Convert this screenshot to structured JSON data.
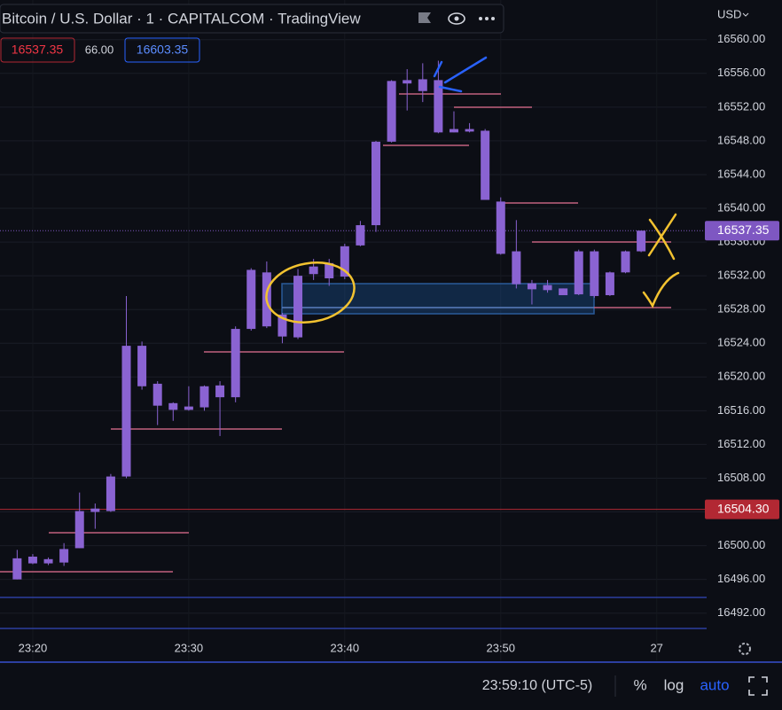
{
  "header": {
    "title": "Bitcoin / U.S. Dollar · 1 · CAPITALCOM · TradingView",
    "bid": "16537.35",
    "spread": "66.00",
    "ask": "16603.35",
    "currency": "USD"
  },
  "footer": {
    "clock": "23:59:10 (UTC-5)",
    "percent": "%",
    "log": "log",
    "auto": "auto"
  },
  "chart_data": {
    "type": "candlestick",
    "color": "#8a63d2",
    "grid": true,
    "x": [
      19,
      20,
      21,
      22,
      23,
      24,
      25,
      26,
      27,
      28,
      29,
      30,
      31,
      32,
      33,
      34,
      35,
      36,
      37,
      38,
      39,
      40,
      41,
      42,
      43,
      44,
      45,
      46,
      47,
      48,
      49,
      50,
      51,
      52,
      53,
      54,
      55,
      56,
      57,
      58,
      59
    ],
    "open": [
      16496.0,
      16497.9,
      16498.4,
      16498.0,
      16499.7,
      16504.0,
      16504.1,
      16508.2,
      16523.7,
      16519.2,
      16516.9,
      16516.1,
      16516.4,
      16519.0,
      16517.6,
      16525.7,
      16532.4,
      16527.4,
      16524.7,
      16532.2,
      16533.5,
      16531.9,
      16535.6,
      16538.0,
      16547.9,
      16555.2,
      16555.3,
      16555.2,
      16549.0,
      16549.4,
      16549.2,
      16540.8,
      16534.9,
      16531.1,
      16530.9,
      16530.5,
      16529.8,
      16534.9,
      16529.7,
      16532.4,
      16534.9
    ],
    "high": [
      16499.5,
      16499.0,
      16498.6,
      16500.3,
      16506.3,
      16505.0,
      16508.5,
      16529.6,
      16524.2,
      16519.5,
      16517.0,
      16518.9,
      16519.0,
      16519.5,
      16526.0,
      16532.9,
      16533.7,
      16527.6,
      16532.8,
      16534.0,
      16534.0,
      16535.8,
      16538.5,
      16548.0,
      16555.2,
      16556.5,
      16557.2,
      16557.5,
      16551.5,
      16550.1,
      16549.4,
      16541.3,
      16538.6,
      16531.5,
      16531.5,
      16530.5,
      16535.1,
      16535.1,
      16532.5,
      16535.0,
      16537.35
    ],
    "low": [
      16496.0,
      16497.8,
      16497.7,
      16497.6,
      16499.7,
      16502.0,
      16504.0,
      16508.0,
      16518.5,
      16514.3,
      16514.8,
      16516.0,
      16516.0,
      16513.0,
      16517.0,
      16525.5,
      16525.8,
      16524.0,
      16524.5,
      16531.5,
      16530.8,
      16531.6,
      16535.5,
      16537.2,
      16547.8,
      16551.6,
      16552.6,
      16548.9,
      16549.0,
      16549.0,
      16541.0,
      16534.5,
      16530.5,
      16528.6,
      16530.0,
      16529.7,
      16529.7,
      16529.4,
      16529.6,
      16532.3,
      16534.8
    ],
    "close": [
      16498.5,
      16498.7,
      16497.9,
      16499.6,
      16504.1,
      16504.4,
      16508.2,
      16523.7,
      16518.9,
      16516.6,
      16516.1,
      16516.5,
      16518.9,
      16517.6,
      16525.7,
      16532.7,
      16526.0,
      16524.8,
      16532.0,
      16533.1,
      16531.7,
      16535.5,
      16538.0,
      16547.9,
      16555.1,
      16554.8,
      16553.9,
      16549.0,
      16549.4,
      16549.1,
      16541.0,
      16534.6,
      16531.0,
      16530.4,
      16530.3,
      16529.7,
      16534.9,
      16529.6,
      16532.4,
      16534.9,
      16537.35
    ],
    "xlim": [
      17.9,
      63.2
    ],
    "xticks": [
      {
        "value": 20,
        "label": "23:20"
      },
      {
        "value": 30,
        "label": "23:30"
      },
      {
        "value": 40,
        "label": "23:40"
      },
      {
        "value": 50,
        "label": "23:50"
      },
      {
        "value": 60,
        "label": "27"
      }
    ],
    "ylim": [
      16486.4,
      16564.7
    ],
    "yticks": [
      {
        "value": 16492,
        "label": "16492.00"
      },
      {
        "value": 16496,
        "label": "16496.00"
      },
      {
        "value": 16500,
        "label": "16500.00"
      },
      {
        "value": 16504,
        "label": "16504.00"
      },
      {
        "value": 16508,
        "label": "16508.00"
      },
      {
        "value": 16512,
        "label": "16512.00"
      },
      {
        "value": 16516,
        "label": "16516.00"
      },
      {
        "value": 16520,
        "label": "16520.00"
      },
      {
        "value": 16524,
        "label": "16524.00"
      },
      {
        "value": 16528,
        "label": "16528.00"
      },
      {
        "value": 16532,
        "label": "16532.00"
      },
      {
        "value": 16536,
        "label": "16536.00"
      },
      {
        "value": 16540,
        "label": "16540.00"
      },
      {
        "value": 16544,
        "label": "16544.00"
      },
      {
        "value": 16548,
        "label": "16548.00"
      },
      {
        "value": 16552,
        "label": "16552.00"
      },
      {
        "value": 16556,
        "label": "16556.00"
      },
      {
        "value": 16560,
        "label": "16560.00"
      }
    ],
    "price_lines": [
      {
        "value": 16537.35,
        "color": "#7e57c2"
      },
      {
        "value": 16504.3,
        "label": "16504.30",
        "color": "#b22833"
      }
    ]
  }
}
